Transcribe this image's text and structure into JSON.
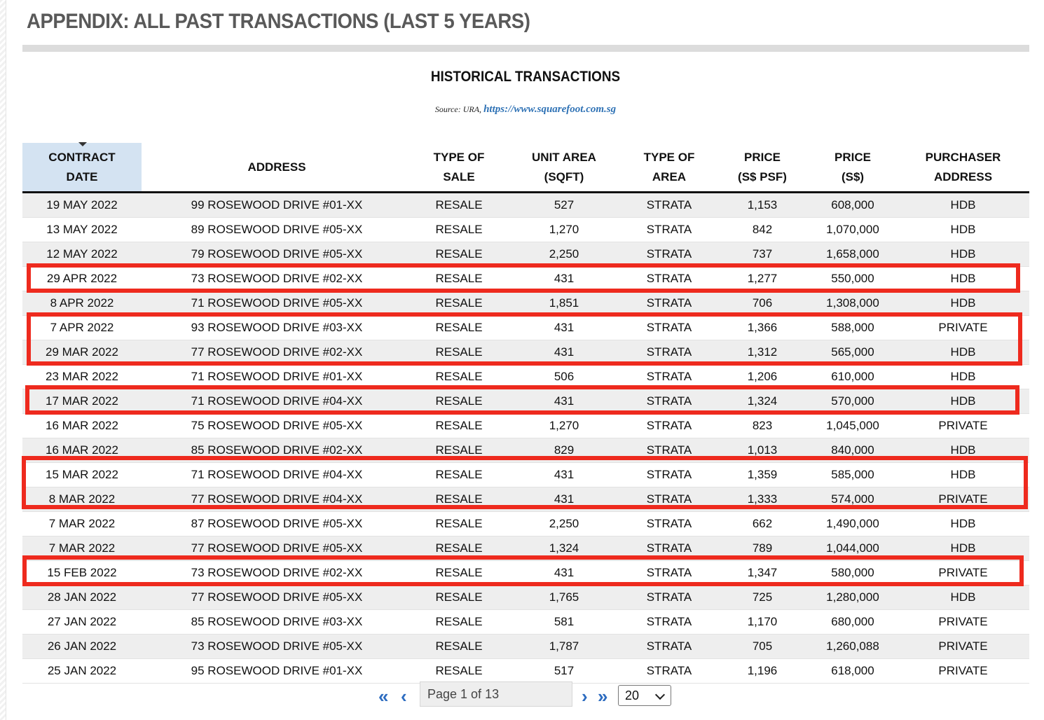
{
  "page": {
    "title": "APPENDIX: ALL PAST TRANSACTIONS (LAST 5 YEARS)",
    "table_title": "HISTORICAL TRANSACTIONS",
    "source_prefix": "Source: URA,",
    "source_link": "https://www.squarefoot.com.sg"
  },
  "table": {
    "headers": [
      {
        "line1": "CONTRACT",
        "line2": "DATE"
      },
      {
        "line1": "ADDRESS",
        "line2": ""
      },
      {
        "line1": "TYPE OF",
        "line2": "SALE"
      },
      {
        "line1": "UNIT AREA",
        "line2": "(SQFT)"
      },
      {
        "line1": "TYPE OF",
        "line2": "AREA"
      },
      {
        "line1": "PRICE",
        "line2": "(S$ PSF)"
      },
      {
        "line1": "PRICE",
        "line2": "(S$)"
      },
      {
        "line1": "PURCHASER",
        "line2": "ADDRESS"
      }
    ],
    "rows": [
      [
        "19 MAY 2022",
        "99 ROSEWOOD DRIVE #01-XX",
        "RESALE",
        "527",
        "STRATA",
        "1,153",
        "608,000",
        "HDB"
      ],
      [
        "13 MAY 2022",
        "89 ROSEWOOD DRIVE #05-XX",
        "RESALE",
        "1,270",
        "STRATA",
        "842",
        "1,070,000",
        "HDB"
      ],
      [
        "12 MAY 2022",
        "79 ROSEWOOD DRIVE #05-XX",
        "RESALE",
        "2,250",
        "STRATA",
        "737",
        "1,658,000",
        "HDB"
      ],
      [
        "29 APR 2022",
        "73 ROSEWOOD DRIVE #02-XX",
        "RESALE",
        "431",
        "STRATA",
        "1,277",
        "550,000",
        "HDB"
      ],
      [
        "8 APR 2022",
        "71 ROSEWOOD DRIVE #05-XX",
        "RESALE",
        "1,851",
        "STRATA",
        "706",
        "1,308,000",
        "HDB"
      ],
      [
        "7 APR 2022",
        "93 ROSEWOOD DRIVE #03-XX",
        "RESALE",
        "431",
        "STRATA",
        "1,366",
        "588,000",
        "PRIVATE"
      ],
      [
        "29 MAR 2022",
        "77 ROSEWOOD DRIVE #02-XX",
        "RESALE",
        "431",
        "STRATA",
        "1,312",
        "565,000",
        "HDB"
      ],
      [
        "23 MAR 2022",
        "71 ROSEWOOD DRIVE #01-XX",
        "RESALE",
        "506",
        "STRATA",
        "1,206",
        "610,000",
        "HDB"
      ],
      [
        "17 MAR 2022",
        "71 ROSEWOOD DRIVE #04-XX",
        "RESALE",
        "431",
        "STRATA",
        "1,324",
        "570,000",
        "HDB"
      ],
      [
        "16 MAR 2022",
        "75 ROSEWOOD DRIVE #05-XX",
        "RESALE",
        "1,270",
        "STRATA",
        "823",
        "1,045,000",
        "PRIVATE"
      ],
      [
        "16 MAR 2022",
        "85 ROSEWOOD DRIVE #02-XX",
        "RESALE",
        "829",
        "STRATA",
        "1,013",
        "840,000",
        "HDB"
      ],
      [
        "15 MAR 2022",
        "71 ROSEWOOD DRIVE #04-XX",
        "RESALE",
        "431",
        "STRATA",
        "1,359",
        "585,000",
        "HDB"
      ],
      [
        "8 MAR 2022",
        "77 ROSEWOOD DRIVE #04-XX",
        "RESALE",
        "431",
        "STRATA",
        "1,333",
        "574,000",
        "PRIVATE"
      ],
      [
        "7 MAR 2022",
        "87 ROSEWOOD DRIVE #05-XX",
        "RESALE",
        "2,250",
        "STRATA",
        "662",
        "1,490,000",
        "HDB"
      ],
      [
        "7 MAR 2022",
        "77 ROSEWOOD DRIVE #05-XX",
        "RESALE",
        "1,324",
        "STRATA",
        "789",
        "1,044,000",
        "HDB"
      ],
      [
        "15 FEB 2022",
        "73 ROSEWOOD DRIVE #02-XX",
        "RESALE",
        "431",
        "STRATA",
        "1,347",
        "580,000",
        "PRIVATE"
      ],
      [
        "28 JAN 2022",
        "77 ROSEWOOD DRIVE #05-XX",
        "RESALE",
        "1,765",
        "STRATA",
        "725",
        "1,280,000",
        "HDB"
      ],
      [
        "27 JAN 2022",
        "85 ROSEWOOD DRIVE #03-XX",
        "RESALE",
        "581",
        "STRATA",
        "1,170",
        "680,000",
        "PRIVATE"
      ],
      [
        "26 JAN 2022",
        "73 ROSEWOOD DRIVE #05-XX",
        "RESALE",
        "1,787",
        "STRATA",
        "705",
        "1,260,088",
        "PRIVATE"
      ],
      [
        "25 JAN 2022",
        "95 ROSEWOOD DRIVE #01-XX",
        "RESALE",
        "517",
        "STRATA",
        "1,196",
        "618,000",
        "PRIVATE"
      ]
    ]
  },
  "pagination": {
    "page_text": "Page 1 of 13",
    "page_size": "20"
  },
  "icons": {
    "first": "double-chevron-left-icon",
    "prev": "chevron-left-icon",
    "next": "chevron-right-icon",
    "last": "double-chevron-right-icon"
  },
  "colors": {
    "highlight": "#ee2a1e",
    "link": "#2f72b5",
    "sorted_header": "#d4e3f2",
    "title": "#595959"
  }
}
